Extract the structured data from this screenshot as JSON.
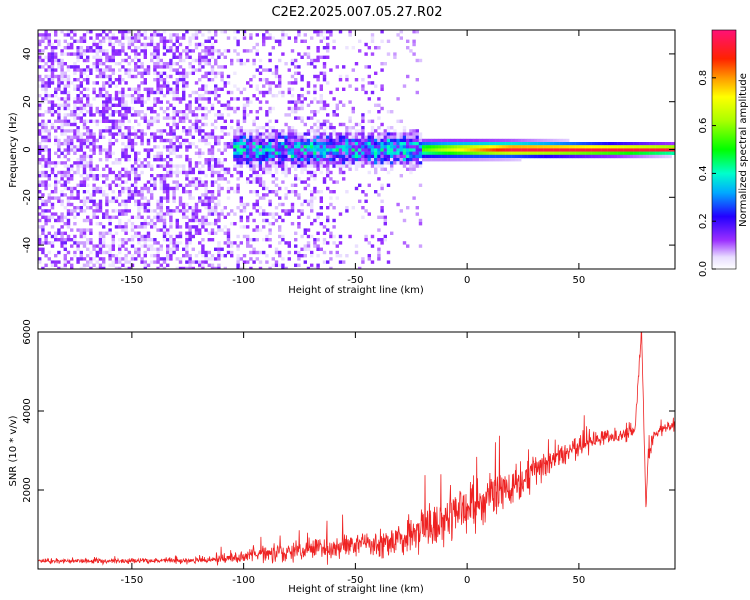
{
  "figure": {
    "title": "C2E2.2025.007.05.27.R02"
  },
  "colors": {
    "snr_line": "#ee2222",
    "axis": "#000000",
    "background": "#ffffff"
  },
  "chart_data": [
    {
      "type": "heatmap",
      "title": "C2E2.2025.007.05.27.R02",
      "xlabel": "Height of straight line (km)",
      "ylabel": "Frequency (Hz)",
      "xlim": [
        -192,
        93
      ],
      "ylim": [
        -50,
        50
      ],
      "x_ticks": [
        -150,
        -100,
        -50,
        0,
        50
      ],
      "y_ticks": [
        -40,
        -20,
        0,
        20,
        40
      ],
      "grid": false,
      "colorbar": {
        "label": "Normalized spectral amplitude",
        "range": [
          0.0,
          1.0
        ],
        "ticks": [
          0.0,
          0.2,
          0.4,
          0.6,
          0.8
        ],
        "tick_labels": [
          "0.0",
          "0.2",
          "0.4",
          "0.6",
          "0.8"
        ],
        "colormap": "hsv-reversed (white, violet, blue, cyan, green, yellow, orange, red, magenta)"
      },
      "features": {
        "noise_region_x": [
          -192,
          -35
        ],
        "noise_amplitude": 0.15,
        "signal_center_freq_hz": 0,
        "signal_onset_x": -105,
        "signal_strong_x": -20,
        "signal_end_x": 93
      }
    },
    {
      "type": "line",
      "xlabel": "Height of straight line (km)",
      "ylabel": "SNR (10 * v/v)",
      "xlim": [
        -192,
        93
      ],
      "ylim": [
        0,
        6000
      ],
      "x_ticks": [
        -150,
        -100,
        -50,
        0,
        50
      ],
      "y_ticks": [
        2000,
        4000,
        6000
      ],
      "grid": false,
      "series": [
        {
          "color": "#ee2222",
          "x": [
            -192,
            -150,
            -120,
            -100,
            -90,
            -80,
            -70,
            -60,
            -50,
            -40,
            -30,
            -20,
            -10,
            0,
            10,
            20,
            30,
            40,
            50,
            60,
            70,
            75,
            78,
            79,
            80,
            81,
            83,
            86,
            90,
            93
          ],
          "y": [
            200,
            200,
            220,
            300,
            400,
            450,
            500,
            550,
            600,
            650,
            800,
            1000,
            1200,
            1500,
            1800,
            2100,
            2500,
            2800,
            3100,
            3300,
            3400,
            3500,
            6000,
            4000,
            1500,
            2800,
            3300,
            3500,
            3600,
            3700
          ],
          "noise_amplitude": [
            60,
            60,
            70,
            120,
            200,
            250,
            250,
            250,
            280,
            300,
            400,
            500,
            600,
            600,
            600,
            500,
            400,
            300,
            250,
            200,
            200,
            200,
            150,
            150,
            150,
            150,
            150,
            150,
            150,
            150
          ]
        }
      ]
    }
  ]
}
